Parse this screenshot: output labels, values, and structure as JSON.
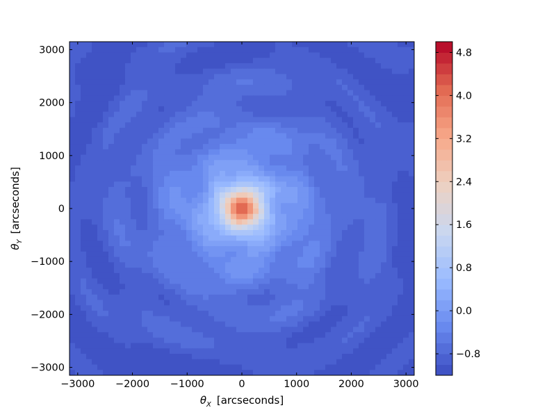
{
  "chart_data": {
    "type": "heatmap",
    "xlabel_symbol": "θ",
    "xlabel_sub": "X",
    "xlabel_unit": "[arcseconds]",
    "ylabel_symbol": "θ",
    "ylabel_sub": "Y",
    "ylabel_unit": "[arcseconds]",
    "xlim": [
      -3150,
      3150
    ],
    "ylim": [
      -3150,
      3150
    ],
    "xticks": [
      -3000,
      -2000,
      -1000,
      0,
      1000,
      2000,
      3000
    ],
    "yticks": [
      -3000,
      -2000,
      -1000,
      0,
      1000,
      2000,
      3000
    ],
    "xtick_labels": [
      "−3000",
      "−2000",
      "−1000",
      "0",
      "1000",
      "2000",
      "3000"
    ],
    "ytick_labels": [
      "−3000",
      "−2000",
      "−1000",
      "0",
      "1000",
      "2000",
      "3000"
    ],
    "colormap": "coolwarm",
    "colorbar_range": [
      -1.2,
      5.0
    ],
    "colorbar_levels": [
      -1.2,
      -1.0,
      -0.8,
      -0.6,
      -0.4,
      -0.2,
      0.0,
      0.2,
      0.4,
      0.6,
      0.8,
      1.0,
      1.2,
      1.4,
      1.6,
      1.8,
      2.0,
      2.2,
      2.4,
      2.6,
      2.8,
      3.0,
      3.2,
      3.4,
      3.6,
      3.8,
      4.0,
      4.2,
      4.4,
      4.6,
      4.8,
      5.0
    ],
    "colorbar_ticks": [
      -0.8,
      0.0,
      0.8,
      1.6,
      2.4,
      3.2,
      4.0,
      4.8
    ],
    "colorbar_tick_labels": [
      "−0.8",
      "0.0",
      "0.8",
      "1.6",
      "2.4",
      "3.2",
      "4.0",
      "4.8"
    ],
    "field_description": "radially symmetric field with peak ~5.0 at center (0,0), ~2.4 around r≈600, ~1.6 around r≈1000, falling to about −1.0 in corners, with ripple structure",
    "peak_value": 5.0,
    "peak_position": [
      0,
      0
    ],
    "colormap_stops": [
      "#3b4cc0",
      "#6788ee",
      "#9abbff",
      "#c9d7f0",
      "#edd1c2",
      "#f7a889",
      "#e26952",
      "#b40426"
    ]
  }
}
